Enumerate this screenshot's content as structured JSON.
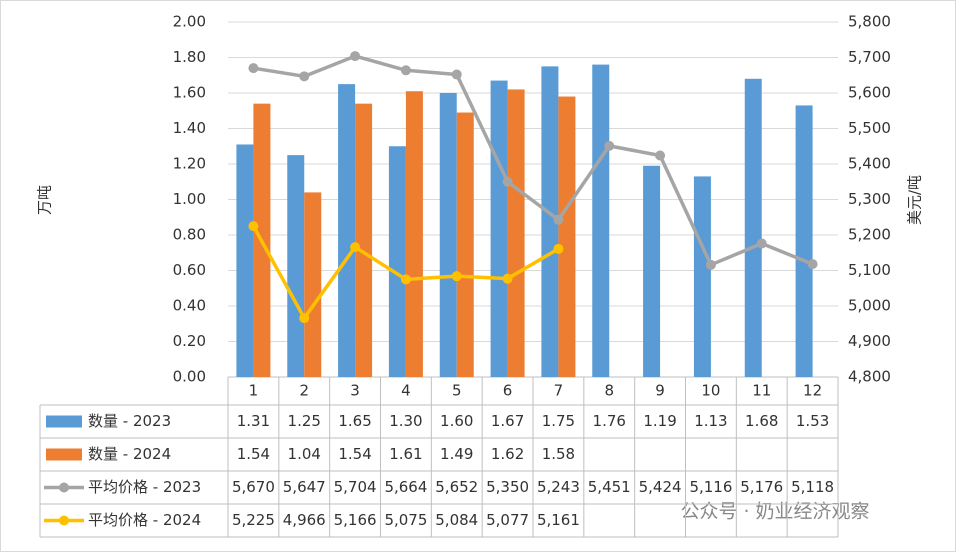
{
  "chart_data": {
    "type": "bar",
    "y_label": "万吨",
    "y2_label": "美元/吨",
    "categories": [
      "1",
      "2",
      "3",
      "4",
      "5",
      "6",
      "7",
      "8",
      "9",
      "10",
      "11",
      "12"
    ],
    "ylim": [
      0,
      2
    ],
    "yticks": [
      {
        "value": 0,
        "label": "0.00"
      },
      {
        "value": 0.2,
        "label": "0.20"
      },
      {
        "value": 0.4,
        "label": "0.40"
      },
      {
        "value": 0.6,
        "label": "0.60"
      },
      {
        "value": 0.8,
        "label": "0.80"
      },
      {
        "value": 1,
        "label": "1.00"
      },
      {
        "value": 1.2,
        "label": "1.20"
      },
      {
        "value": 1.4,
        "label": "1.40"
      },
      {
        "value": 1.6,
        "label": "1.60"
      },
      {
        "value": 1.8,
        "label": "1.80"
      },
      {
        "value": 2,
        "label": "2.00"
      }
    ],
    "y2lim": [
      4800,
      5800
    ],
    "y2ticks": [
      {
        "value": 4800,
        "label": "4,800"
      },
      {
        "value": 4900,
        "label": "4,900"
      },
      {
        "value": 5000,
        "label": "5,000"
      },
      {
        "value": 5100,
        "label": "5,100"
      },
      {
        "value": 5200,
        "label": "5,200"
      },
      {
        "value": 5300,
        "label": "5,300"
      },
      {
        "value": 5400,
        "label": "5,400"
      },
      {
        "value": 5500,
        "label": "5,500"
      },
      {
        "value": 5600,
        "label": "5,600"
      },
      {
        "value": 5700,
        "label": "5,700"
      },
      {
        "value": 5800,
        "label": "5,800"
      }
    ],
    "series": [
      {
        "name": "数量 - 2023",
        "type": "bar",
        "color": "#5b9bd5",
        "values": [
          1.31,
          1.25,
          1.65,
          1.3,
          1.6,
          1.67,
          1.75,
          1.76,
          1.19,
          1.13,
          1.68,
          1.53
        ],
        "value_labels": [
          "1.31",
          "1.25",
          "1.65",
          "1.30",
          "1.60",
          "1.67",
          "1.75",
          "1.76",
          "1.19",
          "1.13",
          "1.68",
          "1.53"
        ]
      },
      {
        "name": "数量 - 2024",
        "type": "bar",
        "color": "#ed7d31",
        "values": [
          1.54,
          1.04,
          1.54,
          1.61,
          1.49,
          1.62,
          1.58,
          null,
          null,
          null,
          null,
          null
        ],
        "value_labels": [
          "1.54",
          "1.04",
          "1.54",
          "1.61",
          "1.49",
          "1.62",
          "1.58",
          null,
          null,
          null,
          null,
          null
        ]
      },
      {
        "name": "平均价格 - 2023",
        "type": "line",
        "axis": "y2",
        "color": "#a5a5a5",
        "values": [
          5670,
          5647,
          5704,
          5664,
          5652,
          5350,
          5243,
          5451,
          5424,
          5116,
          5176,
          5118
        ],
        "value_labels": [
          "5,670",
          "5,647",
          "5,704",
          "5,664",
          "5,652",
          "5,350",
          "5,243",
          "5,451",
          "5,424",
          "5,116",
          "5,176",
          "5,118"
        ]
      },
      {
        "name": "平均价格 - 2024",
        "type": "line",
        "axis": "y2",
        "color": "#ffc000",
        "values": [
          5225,
          4966,
          5166,
          5075,
          5084,
          5077,
          5161,
          null,
          null,
          null,
          null,
          null
        ],
        "value_labels": [
          "5,225",
          "4,966",
          "5,166",
          "5,075",
          "5,084",
          "5,077",
          "5,161",
          null,
          null,
          null,
          null,
          null
        ]
      }
    ],
    "watermark": "公众号 · 奶业经济观察"
  }
}
